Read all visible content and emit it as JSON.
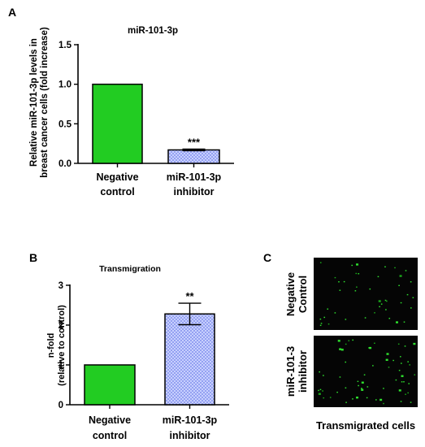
{
  "panels": [
    {
      "letter": "A",
      "chart_data": {
        "type": "bar",
        "title": "miR-101-3p",
        "ylabel_lines": [
          "Relative miR-101-3p levels in",
          "breast cancer cells (fold increase)"
        ],
        "xlabel": "",
        "categories": [
          [
            "Negative",
            "control"
          ],
          [
            "miR-101-3p",
            "inhibitor"
          ]
        ],
        "values": [
          1.0,
          0.17
        ],
        "errors": [
          0,
          0.01
        ],
        "significance": [
          "",
          "***"
        ],
        "ylim": [
          0,
          1.5
        ],
        "yticks": [
          0,
          0.5,
          1.0,
          1.5
        ],
        "ytick_labels": [
          "0.0",
          "0.5",
          "1.0",
          "1.5"
        ],
        "grid": false,
        "colors": [
          "#22cc22",
          "#a8b4ff"
        ],
        "patterns": [
          "solid",
          "dotted"
        ]
      }
    },
    {
      "letter": "B",
      "chart_data": {
        "type": "bar",
        "title": "Transmigration",
        "ylabel_lines": [
          "n-fold",
          "(relative to control)"
        ],
        "xlabel": "",
        "categories": [
          [
            "Negative",
            "control"
          ],
          [
            "miR-101-3p",
            "inhibitor"
          ]
        ],
        "values": [
          1.0,
          2.28
        ],
        "errors": [
          0,
          0.27
        ],
        "significance": [
          "",
          "**"
        ],
        "ylim": [
          0,
          3
        ],
        "yticks": [
          0,
          1,
          2,
          3
        ],
        "ytick_labels": [
          "0",
          "1",
          "2",
          "3"
        ],
        "grid": false,
        "colors": [
          "#22cc22",
          "#a8b4ff"
        ],
        "patterns": [
          "solid",
          "dotted"
        ]
      }
    }
  ],
  "panel_c": {
    "letter": "C",
    "row_labels": [
      [
        "Negative",
        "Control"
      ],
      [
        "miR-101-3",
        "inhibitor"
      ]
    ],
    "caption": "Transmigrated cells"
  }
}
